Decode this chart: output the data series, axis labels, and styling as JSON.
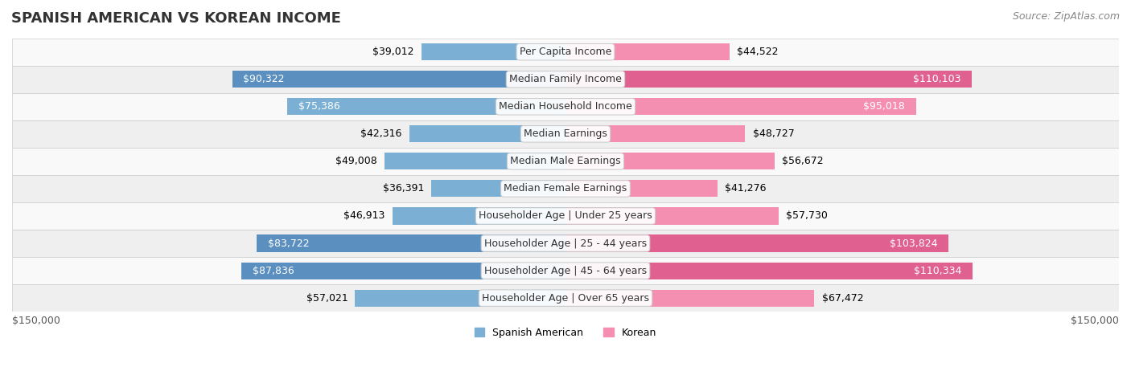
{
  "title": "SPANISH AMERICAN VS KOREAN INCOME",
  "source": "Source: ZipAtlas.com",
  "categories": [
    "Per Capita Income",
    "Median Family Income",
    "Median Household Income",
    "Median Earnings",
    "Median Male Earnings",
    "Median Female Earnings",
    "Householder Age | Under 25 years",
    "Householder Age | 25 - 44 years",
    "Householder Age | 45 - 64 years",
    "Householder Age | Over 65 years"
  ],
  "spanish_american": [
    39012,
    90322,
    75386,
    42316,
    49008,
    36391,
    46913,
    83722,
    87836,
    57021
  ],
  "korean": [
    44522,
    110103,
    95018,
    48727,
    56672,
    41276,
    57730,
    103824,
    110334,
    67472
  ],
  "max_val": 150000,
  "color_spanish": "#7bafd4",
  "color_korean": "#f48fb1",
  "color_spanish_dark": "#5b8fbf",
  "color_korean_dark": "#e06090",
  "bg_color": "#f5f5f5",
  "row_bg_light": "#f9f9f9",
  "row_bg_dark": "#efefef",
  "label_fontsize": 9,
  "title_fontsize": 13,
  "source_fontsize": 9
}
